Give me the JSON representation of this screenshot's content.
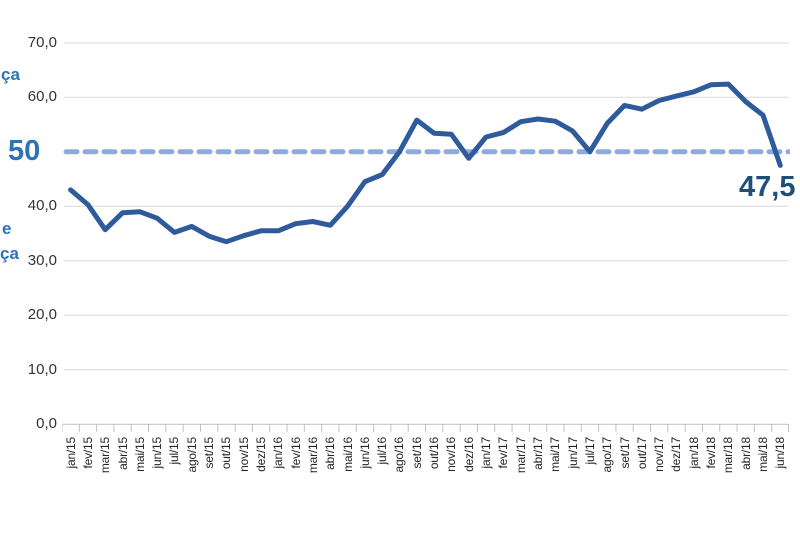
{
  "chart_data": {
    "type": "line",
    "categories": [
      "jan/15",
      "fev/15",
      "mar/15",
      "abr/15",
      "mai/15",
      "jun/15",
      "jul/15",
      "ago/15",
      "set/15",
      "out/15",
      "nov/15",
      "dez/15",
      "jan/16",
      "fev/16",
      "mar/16",
      "abr/16",
      "mai/16",
      "jun/16",
      "jul/16",
      "ago/16",
      "set/16",
      "out/16",
      "nov/16",
      "dez/16",
      "jan/17",
      "fev/17",
      "mar/17",
      "abr/17",
      "mai/17",
      "jun/17",
      "jul/17",
      "ago/17",
      "set/17",
      "out/17",
      "nov/17",
      "dez/17",
      "jan/18",
      "fev/18",
      "mar/18",
      "abr/18",
      "mai/18",
      "jun/18"
    ],
    "values": [
      43.0,
      40.3,
      35.7,
      38.8,
      39.0,
      37.8,
      35.2,
      36.3,
      34.5,
      33.5,
      34.6,
      35.5,
      35.5,
      36.8,
      37.2,
      36.5,
      40.0,
      44.5,
      45.8,
      50.0,
      55.8,
      53.4,
      53.2,
      48.8,
      52.7,
      53.5,
      55.5,
      56.0,
      55.6,
      53.8,
      50.0,
      55.2,
      58.5,
      57.8,
      59.4,
      60.2,
      61.0,
      62.3,
      62.4,
      59.2,
      56.7,
      47.5
    ],
    "y_tick_labels": [
      "70,0",
      "60,0",
      "40,0",
      "30,0",
      "20,0",
      "10,0",
      "0,0"
    ],
    "y_tick_values": [
      70,
      60,
      40,
      30,
      20,
      10,
      0
    ],
    "ylim": [
      0,
      70
    ],
    "reference_line_value": 50,
    "grid": "horizontal",
    "legend": "none",
    "x_tick_rotation": -90
  },
  "annotations": {
    "ref_label": "50",
    "end_value_label": "47,5",
    "left_text_fragments": [
      "ça",
      "e",
      "ça"
    ]
  },
  "colors": {
    "series_line": "#2F5B9D",
    "reference_dashed": "#8EAADB",
    "gridline": "#D9D9D9",
    "axis": "#BFBFBF",
    "ref_label_blue": "#2E74B5",
    "end_label_navy": "#1F4E79"
  }
}
